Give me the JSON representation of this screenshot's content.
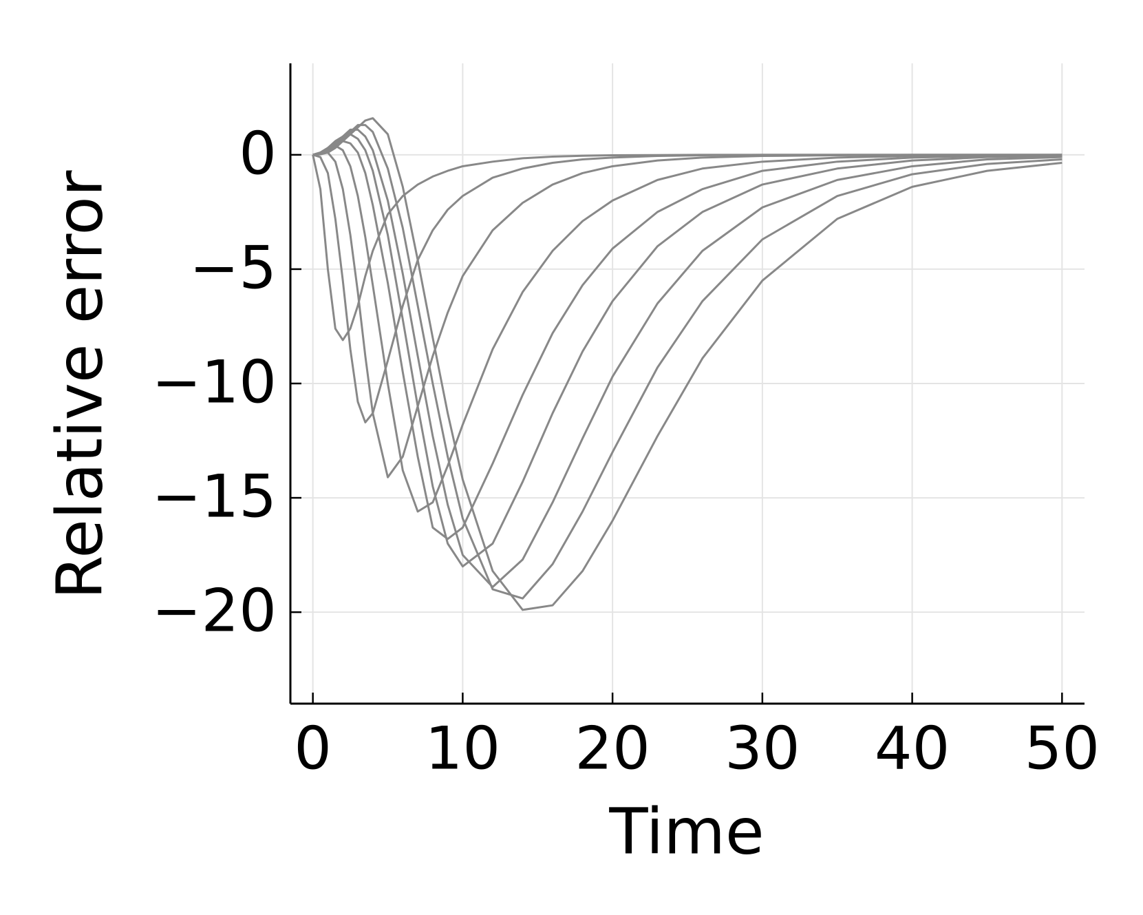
{
  "chart_data": {
    "type": "line",
    "xlabel": "Time",
    "ylabel": "Relative error",
    "x": [
      0,
      0.5,
      1,
      1.5,
      2,
      2.5,
      3,
      3.5,
      4,
      5,
      6,
      7,
      8,
      9,
      10,
      12,
      14,
      16,
      18,
      20,
      23,
      26,
      30,
      35,
      40,
      45,
      50
    ],
    "series": [
      {
        "color": "#888888",
        "values": [
          0,
          -1.5,
          -5.0,
          -7.6,
          -8.1,
          -7.6,
          -6.6,
          -5.3,
          -4.2,
          -2.6,
          -1.8,
          -1.3,
          -0.95,
          -0.7,
          -0.5,
          -0.3,
          -0.15,
          -0.08,
          -0.04,
          -0.02,
          -0.01,
          0,
          0,
          0,
          0,
          0,
          0
        ]
      },
      {
        "color": "#888888",
        "values": [
          0,
          -0.1,
          -0.8,
          -2.8,
          -5.5,
          -8.5,
          -10.8,
          -11.7,
          -11.3,
          -9.0,
          -6.6,
          -4.6,
          -3.3,
          -2.4,
          -1.8,
          -1.0,
          -0.6,
          -0.35,
          -0.2,
          -0.12,
          -0.05,
          -0.02,
          0,
          0,
          0,
          0,
          0
        ]
      },
      {
        "color": "#888888",
        "values": [
          0,
          0.05,
          0.1,
          -0.3,
          -1.5,
          -3.5,
          -6,
          -8.8,
          -11.3,
          -14.1,
          -13.2,
          -11,
          -8.8,
          -6.9,
          -5.3,
          -3.3,
          -2.1,
          -1.3,
          -0.8,
          -0.5,
          -0.25,
          -0.12,
          -0.05,
          -0.02,
          0,
          0,
          0
        ]
      },
      {
        "color": "#888888",
        "values": [
          0,
          0.1,
          0.3,
          0.4,
          0.2,
          -0.5,
          -1.8,
          -3.6,
          -5.7,
          -10,
          -13.8,
          -15.6,
          -15.2,
          -13.6,
          -11.8,
          -8.5,
          -6.0,
          -4.2,
          -2.9,
          -2.0,
          -1.1,
          -0.6,
          -0.3,
          -0.12,
          -0.05,
          -0.02,
          0
        ]
      },
      {
        "color": "#888888",
        "values": [
          0,
          0.1,
          0.3,
          0.5,
          0.6,
          0.5,
          0.1,
          -0.8,
          -2.2,
          -5.6,
          -9.5,
          -13.2,
          -16.3,
          -16.8,
          -16.3,
          -13.5,
          -10.5,
          -7.8,
          -5.7,
          -4.1,
          -2.5,
          -1.5,
          -0.7,
          -0.3,
          -0.12,
          -0.05,
          -0.02
        ]
      },
      {
        "color": "#888888",
        "values": [
          0,
          0.05,
          0.3,
          0.6,
          0.8,
          0.9,
          0.7,
          0.2,
          -0.7,
          -3.5,
          -7.2,
          -11,
          -14.5,
          -17,
          -18,
          -17,
          -14.3,
          -11.3,
          -8.6,
          -6.4,
          -4.0,
          -2.5,
          -1.3,
          -0.6,
          -0.25,
          -0.1,
          -0.05
        ]
      },
      {
        "color": "#888888",
        "values": [
          0,
          0.05,
          0.2,
          0.5,
          0.8,
          1.1,
          1.1,
          0.8,
          0.2,
          -2,
          -5.2,
          -8.8,
          -12.3,
          -15.3,
          -17.5,
          -18.9,
          -17.7,
          -15.2,
          -12.4,
          -9.7,
          -6.5,
          -4.2,
          -2.3,
          -1.1,
          -0.5,
          -0.2,
          -0.1
        ]
      },
      {
        "color": "#888888",
        "values": [
          0,
          0.03,
          0.15,
          0.4,
          0.7,
          1.0,
          1.3,
          1.3,
          1.0,
          -0.6,
          -3.2,
          -6.6,
          -10,
          -13.2,
          -15.9,
          -19,
          -19.4,
          -17.9,
          -15.6,
          -13.0,
          -9.3,
          -6.4,
          -3.7,
          -1.8,
          -0.85,
          -0.4,
          -0.2
        ]
      },
      {
        "color": "#888888",
        "values": [
          0,
          0.02,
          0.1,
          0.3,
          0.6,
          0.9,
          1.2,
          1.5,
          1.6,
          0.9,
          -1.4,
          -4.6,
          -8,
          -11.3,
          -14.2,
          -18.2,
          -19.9,
          -19.7,
          -18.2,
          -16,
          -12.3,
          -8.9,
          -5.5,
          -2.8,
          -1.4,
          -0.7,
          -0.35
        ]
      }
    ],
    "xlim": [
      -1.5,
      51.5
    ],
    "ylim": [
      -24,
      4
    ],
    "xticks": [
      0,
      10,
      20,
      30,
      40,
      50
    ],
    "yticks": [
      0,
      {
        "value": -5,
        "label": "−5"
      },
      {
        "value": -10,
        "label": "−10"
      },
      {
        "value": -15,
        "label": "−15"
      },
      {
        "value": -20,
        "label": "−20"
      }
    ],
    "grid": true
  }
}
